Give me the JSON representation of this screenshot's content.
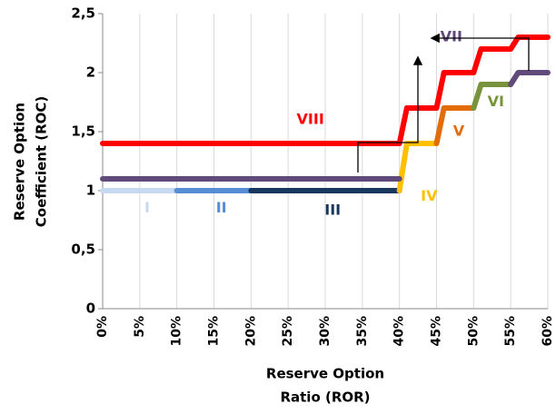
{
  "chart_data": {
    "type": "line",
    "y_label": [
      "Reserve Option",
      "Coefficient (ROC)"
    ],
    "x_label": [
      "Reserve Option",
      "Ratio (ROR)"
    ],
    "xlim": [
      0,
      60
    ],
    "xticks": [
      {
        "value": 0,
        "label": "0%"
      },
      {
        "value": 5,
        "label": "5%"
      },
      {
        "value": 10,
        "label": "10%"
      },
      {
        "value": 15,
        "label": "15%"
      },
      {
        "value": 20,
        "label": "20%"
      },
      {
        "value": 25,
        "label": "25%"
      },
      {
        "value": 30,
        "label": "30%"
      },
      {
        "value": 35,
        "label": "35%"
      },
      {
        "value": 40,
        "label": "40%"
      },
      {
        "value": 45,
        "label": "45%"
      },
      {
        "value": 50,
        "label": "50%"
      },
      {
        "value": 55,
        "label": "55%"
      },
      {
        "value": 60,
        "label": "60%"
      }
    ],
    "ylim": [
      0,
      2.5
    ],
    "yticks": [
      0,
      {
        "value": 0.5,
        "label": "0,5"
      },
      1,
      {
        "value": 1.5,
        "label": "1,5"
      },
      2,
      {
        "value": 2.5,
        "label": "2,5"
      }
    ],
    "grid": "x",
    "series": [
      {
        "name": "I",
        "color": "#c6d9f1",
        "x": [
          0,
          10
        ],
        "values": [
          1,
          1
        ]
      },
      {
        "name": "II",
        "color": "#558ed5",
        "x": [
          10,
          20
        ],
        "values": [
          1,
          1
        ]
      },
      {
        "name": "III",
        "color": "#17375e",
        "x": [
          20,
          40
        ],
        "values": [
          1,
          1
        ]
      },
      {
        "name": "IV",
        "color": "#ffc000",
        "x": [
          40,
          41,
          45
        ],
        "values": [
          1,
          1.4,
          1.4
        ]
      },
      {
        "name": "V",
        "color": "#e36c09",
        "x": [
          45,
          46,
          50
        ],
        "values": [
          1.4,
          1.7,
          1.7
        ]
      },
      {
        "name": "VI",
        "color": "#77933c",
        "x": [
          50,
          51,
          55
        ],
        "values": [
          1.7,
          1.9,
          1.9
        ]
      },
      {
        "name": "VII",
        "color": "#604a7b",
        "x": [
          0,
          40,
          null,
          55,
          56,
          60
        ],
        "values": [
          1.1,
          1.1,
          null,
          1.9,
          2,
          2
        ]
      },
      {
        "name": "VIII",
        "color": "#ff0000",
        "x": [
          0,
          40,
          41,
          45,
          46,
          50,
          51,
          55,
          56,
          60
        ],
        "values": [
          1.4,
          1.4,
          1.7,
          1.7,
          2,
          2,
          2.2,
          2.2,
          2.3,
          2.3
        ]
      }
    ]
  }
}
